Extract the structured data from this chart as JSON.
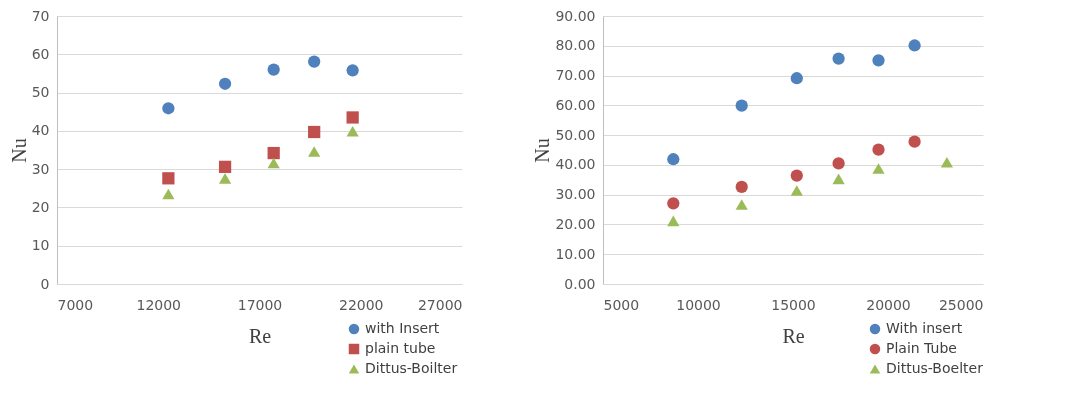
{
  "chart_data": [
    {
      "type": "scatter",
      "xlabel": "Re",
      "ylabel": "Nu",
      "xlim": [
        7000,
        27000
      ],
      "xticks": [
        7000,
        12000,
        17000,
        22000,
        27000
      ],
      "ylim": [
        0,
        70
      ],
      "yticks": [
        0,
        10,
        20,
        30,
        40,
        50,
        60,
        70
      ],
      "grid": "y",
      "legend": "bottom right",
      "x": [
        12500,
        15300,
        17700,
        19700,
        21600
      ],
      "series": [
        {
          "name": "with  Insert",
          "color": "#4f81bd",
          "marker": "circle",
          "values": [
            45.9,
            52.3,
            56.0,
            58.1,
            55.8
          ]
        },
        {
          "name": "plain tube",
          "color": "#c0504d",
          "marker": "square",
          "values": [
            27.6,
            30.6,
            34.2,
            39.7,
            43.5
          ]
        },
        {
          "name": "Dittus-Boilter",
          "color": "#9bbb59",
          "marker": "triangle",
          "values": [
            23.5,
            27.6,
            31.6,
            34.6,
            39.9
          ]
        }
      ]
    },
    {
      "type": "scatter",
      "xlabel": "Re",
      "ylabel": "Nu",
      "xlim": [
        5000,
        25000
      ],
      "xticks": [
        5000,
        10000,
        15000,
        20000,
        25000
      ],
      "ylim": [
        0,
        90
      ],
      "yticks": [
        {
          "value": 0,
          "label": "0.00"
        },
        {
          "value": 10,
          "label": "10.00"
        },
        {
          "value": 20,
          "label": "20.00"
        },
        {
          "value": 30,
          "label": "30.00"
        },
        {
          "value": 40,
          "label": "40.00"
        },
        {
          "value": 50,
          "label": "50.00"
        },
        {
          "value": 60,
          "label": "60.00"
        },
        {
          "value": 70,
          "label": "70.00"
        },
        {
          "value": 80,
          "label": "80.00"
        },
        {
          "value": 90,
          "label": "90.00"
        }
      ],
      "grid": "y",
      "legend": "bottom right",
      "series": [
        {
          "name": "With insert",
          "color": "#4f81bd",
          "marker": "circle",
          "x": [
            8700,
            12300,
            15200,
            17400,
            19500,
            21400
          ],
          "values": [
            41.9,
            59.9,
            69.1,
            75.7,
            75.1,
            80.1
          ]
        },
        {
          "name": "Plain Tube",
          "color": "#c0504d",
          "marker": "circle",
          "x": [
            8700,
            12300,
            15200,
            17400,
            19500,
            21400
          ],
          "values": [
            27.1,
            32.6,
            36.4,
            40.5,
            45.1,
            47.8
          ]
        },
        {
          "name": "Dittus-Boelter",
          "color": "#9bbb59",
          "marker": "triangle",
          "x": [
            8700,
            12300,
            15200,
            17400,
            19500,
            23100
          ],
          "values": [
            21.2,
            26.7,
            31.4,
            35.3,
            38.8,
            40.9
          ]
        }
      ]
    }
  ]
}
